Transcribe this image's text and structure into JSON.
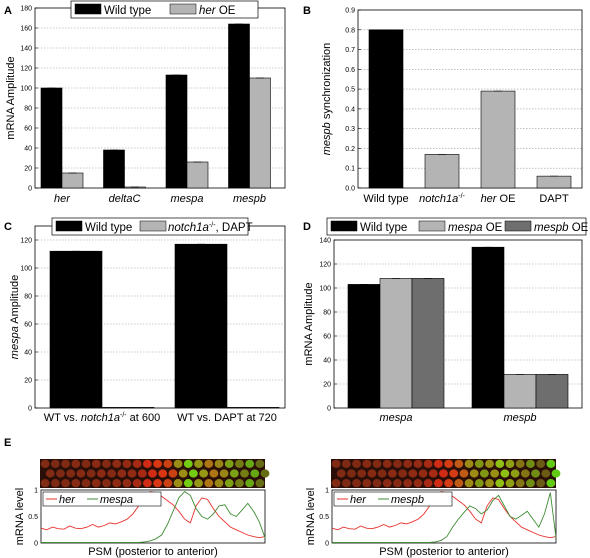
{
  "colors": {
    "wild_type": "#000000",
    "light_gray": "#b4b4b4",
    "dark_gray": "#6e6e6e",
    "her_line": "#e8312c",
    "mesp_line": "#3f8c34",
    "cell_red": "#8a2a1a",
    "cell_green": "#5aa832"
  },
  "panels": {
    "A": {
      "label": "A"
    },
    "B": {
      "label": "B"
    },
    "C": {
      "label": "C"
    },
    "D": {
      "label": "D"
    },
    "E": {
      "label": "E"
    }
  },
  "chart_data": [
    {
      "panel": "A",
      "type": "bar",
      "categories": [
        "her",
        "deltaC",
        "mespa",
        "mespb"
      ],
      "series": [
        {
          "name": "Wild type",
          "color": "#000000",
          "values": [
            100,
            38,
            113,
            164
          ]
        },
        {
          "name": "her OE",
          "color": "#b4b4b4",
          "values": [
            15,
            1,
            26,
            110
          ]
        }
      ],
      "legend": [
        {
          "text": "Wild type",
          "italic": ""
        },
        {
          "text": "OE",
          "italic": "her"
        }
      ],
      "ylabel": "mRNA Amplitude",
      "ylim": [
        0,
        180
      ],
      "yticks": [
        "0",
        "20",
        "40",
        "60",
        "80",
        "100",
        "120",
        "140",
        "160",
        "180"
      ],
      "legend_position": "top",
      "grid": true
    },
    {
      "panel": "B",
      "type": "bar",
      "categories": [
        "Wild type",
        "notch1a",
        "her OE",
        "DAPT"
      ],
      "values": [
        0.8,
        0.17,
        0.49,
        0.06
      ],
      "colors": [
        "#000000",
        "#b4b4b4",
        "#b4b4b4",
        "#b4b4b4"
      ],
      "ylabel_italic": "mespb",
      "ylabel": "synchronization",
      "ylim": [
        0,
        0.9
      ],
      "yticks": [
        "0.0",
        "0.1",
        "0.2",
        "0.3",
        "0.4",
        "0.5",
        "0.6",
        "0.7",
        "0.8",
        "0.9"
      ],
      "category_parts": [
        {
          "italic": "",
          "plain": "Wild type",
          "sup": ""
        },
        {
          "italic": "notch1a",
          "plain": "",
          "sup": "-/-"
        },
        {
          "italic": "her",
          "plain": " OE",
          "sup": ""
        },
        {
          "italic": "",
          "plain": "DAPT",
          "sup": ""
        }
      ],
      "grid": true
    },
    {
      "panel": "C",
      "type": "bar",
      "categories": [
        "WT vs. notch1a at 600",
        "WT vs. DAPT at 720"
      ],
      "series": [
        {
          "name": "Wild type",
          "color": "#000000",
          "values": [
            112,
            117
          ]
        },
        {
          "name": "notch1a, DAPT",
          "color": "#b4b4b4",
          "values": [
            0.5,
            0.5
          ]
        }
      ],
      "ylabel_italic": "mespa",
      "ylabel": "Amplitude",
      "ylim": [
        0,
        130
      ],
      "yticks": [
        "0",
        "20",
        "40",
        "60",
        "80",
        "100",
        "120"
      ],
      "category_parts": [
        {
          "pre": "WT vs. ",
          "italic": "notch1a",
          "sup": "-/-",
          "post": " at 600"
        },
        {
          "pre": "WT vs. DAPT at 720",
          "italic": "",
          "sup": "",
          "post": ""
        }
      ],
      "legend": [
        {
          "pre": "Wild type",
          "italic": "",
          "sup": "",
          "post": ""
        },
        {
          "pre": "",
          "italic": "notch1a",
          "sup": "-/-",
          "post": ", DAPT"
        }
      ],
      "legend_position": "top",
      "grid": true
    },
    {
      "panel": "D",
      "type": "bar",
      "categories": [
        "mespa",
        "mespb"
      ],
      "series": [
        {
          "name": "Wild type",
          "color": "#000000",
          "values": [
            103,
            134
          ]
        },
        {
          "name": "mespa OE",
          "color": "#b4b4b4",
          "values": [
            108,
            28
          ]
        },
        {
          "name": "mespb OE",
          "color": "#6e6e6e",
          "values": [
            108,
            28
          ]
        }
      ],
      "ylabel": "mRNA Amplitude",
      "ylim": [
        0,
        140
      ],
      "yticks": [
        "0",
        "20",
        "40",
        "60",
        "80",
        "100",
        "120",
        "140"
      ],
      "legend": [
        {
          "italic": "",
          "plain": "Wild type"
        },
        {
          "italic": "mespa",
          "plain": " OE"
        },
        {
          "italic": "mespb",
          "plain": " OE"
        }
      ],
      "legend_position": "top",
      "grid": true
    },
    {
      "panel": "E-left",
      "type": "line",
      "series": [
        {
          "name": "her",
          "color": "#e8312c",
          "y": [
            0.28,
            0.25,
            0.3,
            0.27,
            0.26,
            0.32,
            0.28,
            0.27,
            0.3,
            0.35,
            0.3,
            0.33,
            0.38,
            0.36,
            0.4,
            0.45,
            0.55,
            0.7,
            0.85,
            0.97,
            0.95,
            0.88,
            0.8,
            0.72,
            0.6,
            0.45,
            0.38,
            0.7,
            0.85,
            0.82,
            0.65,
            0.5,
            0.4,
            0.3,
            0.25,
            0.2,
            0.15,
            0.12,
            0.1,
            0.12
          ]
        },
        {
          "name": "mespa",
          "color": "#3f8c34",
          "y": [
            0.01,
            0.01,
            0.01,
            0.01,
            0.01,
            0.01,
            0.01,
            0.01,
            0.01,
            0.01,
            0.01,
            0.01,
            0.01,
            0.01,
            0.01,
            0.01,
            0.01,
            0.01,
            0.02,
            0.04,
            0.08,
            0.15,
            0.35,
            0.6,
            0.85,
            0.97,
            0.9,
            0.65,
            0.5,
            0.45,
            0.55,
            0.7,
            0.72,
            0.55,
            0.5,
            0.62,
            0.75,
            0.6,
            0.4,
            0.1
          ]
        }
      ],
      "legend": [
        "her",
        "mespa"
      ],
      "ylabel": "mRNA level",
      "yticks": [
        "0",
        "0.5",
        "1"
      ],
      "ylim": [
        0,
        1
      ],
      "xlabel": "PSM (posterior to anterior)"
    },
    {
      "panel": "E-right",
      "type": "line",
      "series": [
        {
          "name": "her",
          "color": "#e8312c",
          "y": [
            0.28,
            0.25,
            0.3,
            0.27,
            0.26,
            0.32,
            0.28,
            0.27,
            0.3,
            0.35,
            0.3,
            0.33,
            0.38,
            0.36,
            0.4,
            0.45,
            0.55,
            0.7,
            0.85,
            0.97,
            0.95,
            0.88,
            0.8,
            0.72,
            0.6,
            0.45,
            0.38,
            0.7,
            0.85,
            0.82,
            0.65,
            0.5,
            0.4,
            0.3,
            0.25,
            0.2,
            0.15,
            0.12,
            0.1,
            0.12
          ]
        },
        {
          "name": "mespb",
          "color": "#3f8c34",
          "y": [
            0.01,
            0.01,
            0.01,
            0.01,
            0.01,
            0.01,
            0.01,
            0.01,
            0.01,
            0.01,
            0.01,
            0.01,
            0.01,
            0.01,
            0.01,
            0.01,
            0.01,
            0.01,
            0.02,
            0.05,
            0.12,
            0.3,
            0.45,
            0.58,
            0.7,
            0.65,
            0.55,
            0.62,
            0.8,
            0.9,
            0.7,
            0.5,
            0.45,
            0.52,
            0.6,
            0.45,
            0.3,
            0.55,
            0.95,
            0.1
          ]
        }
      ],
      "legend": [
        "her",
        "mespb"
      ],
      "ylabel": "mRNA level",
      "yticks": [
        "0",
        "0.5",
        "1"
      ],
      "ylim": [
        0,
        1
      ],
      "xlabel": "PSM (posterior to anterior)"
    }
  ]
}
